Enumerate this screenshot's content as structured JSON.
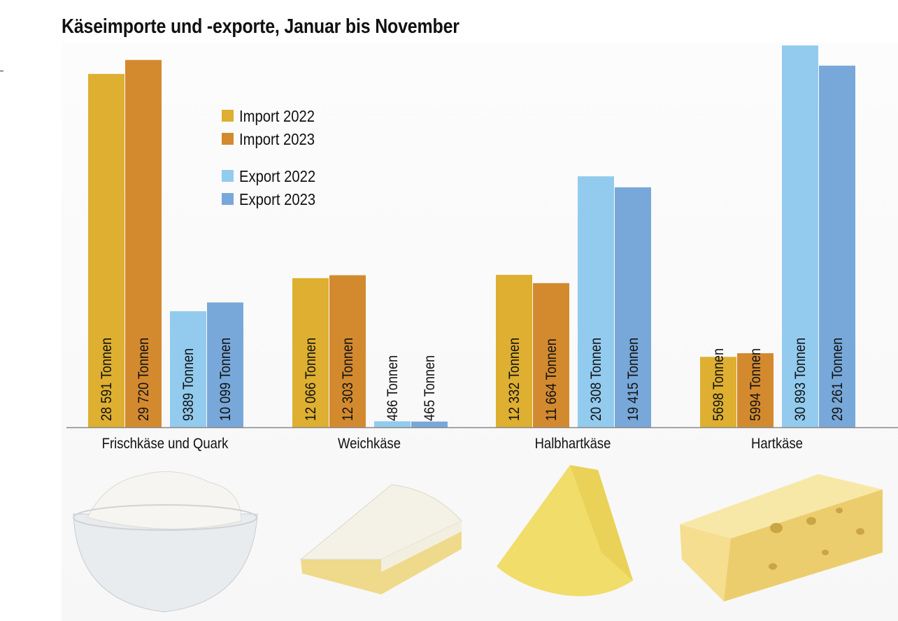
{
  "chart_data": {
    "type": "bar",
    "title": "Käseimporte und -exporte, Januar bis November",
    "categories": [
      "Frischkäse und Quark",
      "Weichkäse",
      "Halbhartkäse",
      "Hartkäse"
    ],
    "unit": "Tonnen",
    "ylim": [
      0,
      31000
    ],
    "grid": false,
    "legend_position": "top-left",
    "series": [
      {
        "name": "Import 2022",
        "color": "#deaf30",
        "values": [
          28591,
          12066,
          12332,
          5698
        ],
        "labels": [
          "28 591 Tonnen",
          "12 066 Tonnen",
          "12 332 Tonnen",
          "5698 Tonnen"
        ]
      },
      {
        "name": "Import 2023",
        "color": "#d38a2f",
        "values": [
          29720,
          12303,
          11664,
          5994
        ],
        "labels": [
          "29 720 Tonnen",
          "12 303 Tonnen",
          "11 664 Tonnen",
          "5994 Tonnen"
        ]
      },
      {
        "name": "Export 2022",
        "color": "#93cbef",
        "values": [
          9389,
          486,
          20308,
          30893
        ],
        "labels": [
          "9389 Tonnen",
          "486 Tonnen",
          "20 308 Tonnen",
          "30 893 Tonnen"
        ]
      },
      {
        "name": "Export 2023",
        "color": "#78a8d9",
        "values": [
          10099,
          465,
          19415,
          29261
        ],
        "labels": [
          "10 099 Tonnen",
          "465 Tonnen",
          "19 415 Tonnen",
          "29 261 Tonnen"
        ]
      }
    ],
    "images": [
      "cream-cheese-bowl",
      "camembert-wedge",
      "semi-hard-cheese-wedge",
      "swiss-cheese-block"
    ]
  }
}
